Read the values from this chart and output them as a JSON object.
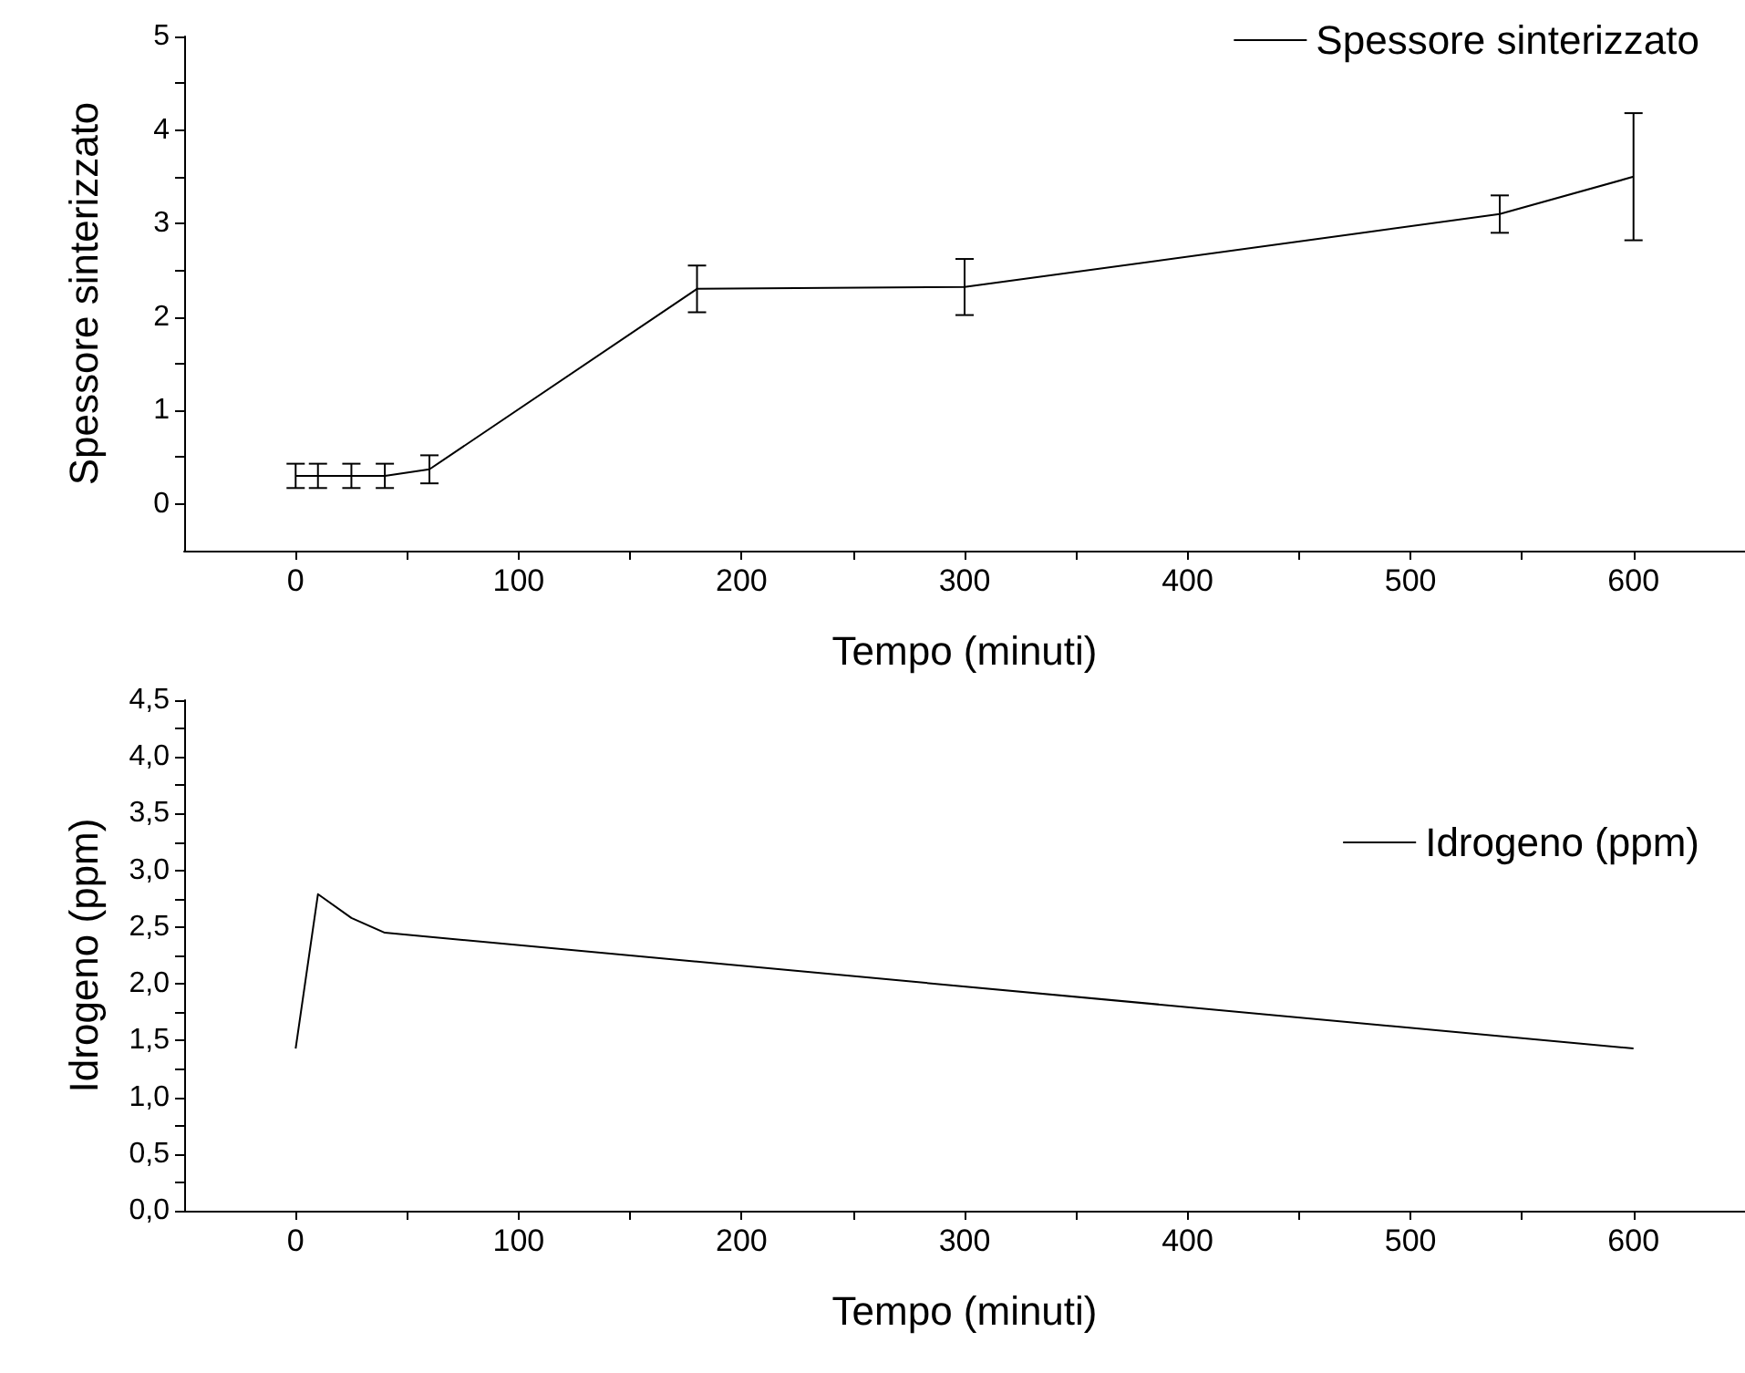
{
  "chart_data": [
    {
      "type": "line",
      "xlabel": "Tempo (minuti)",
      "ylabel": "Spessore sinterizzato",
      "x": [
        0,
        10,
        25,
        40,
        60,
        180,
        300,
        540,
        600
      ],
      "series": [
        {
          "name": "Spessore sinterizzato",
          "color": "#000000",
          "values": [
            0.3,
            0.3,
            0.3,
            0.3,
            0.37,
            2.3,
            2.32,
            3.1,
            3.5
          ],
          "errors": [
            0.13,
            0.13,
            0.13,
            0.13,
            0.15,
            0.25,
            0.3,
            0.2,
            0.68
          ]
        }
      ],
      "xlim": [
        -50,
        650
      ],
      "xticks": [
        0,
        {
          "value": 50,
          "label": null
        },
        100,
        {
          "value": 150,
          "label": null
        },
        200,
        {
          "value": 250,
          "label": null
        },
        300,
        {
          "value": 350,
          "label": null
        },
        400,
        {
          "value": 450,
          "label": null
        },
        500,
        {
          "value": 550,
          "label": null
        },
        600
      ],
      "ylim": [
        -0.5,
        5
      ],
      "yticks": [
        0,
        {
          "value": 0.5,
          "label": null
        },
        1,
        {
          "value": 1.5,
          "label": null
        },
        2,
        {
          "value": 2.5,
          "label": null
        },
        3,
        {
          "value": 3.5,
          "label": null
        },
        4,
        {
          "value": 4.5,
          "label": null
        },
        5
      ],
      "legend": "top right",
      "grid": false,
      "marker": "none",
      "line_style": "solid"
    },
    {
      "type": "line",
      "xlabel": "Tempo (minuti)",
      "ylabel": "Idrogeno (ppm)",
      "x": [
        0,
        10,
        25,
        40,
        600
      ],
      "series": [
        {
          "name": "Idrogeno (ppm)",
          "color": "#000000",
          "values": [
            1.43,
            2.79,
            2.58,
            2.45,
            1.43
          ]
        }
      ],
      "xlim": [
        -50,
        650
      ],
      "xticks": [
        0,
        {
          "value": 50,
          "label": null
        },
        100,
        {
          "value": 150,
          "label": null
        },
        200,
        {
          "value": 250,
          "label": null
        },
        300,
        {
          "value": 350,
          "label": null
        },
        400,
        {
          "value": 450,
          "label": null
        },
        500,
        {
          "value": 550,
          "label": null
        },
        600
      ],
      "ylim": [
        0,
        4.5
      ],
      "yticks": [
        {
          "value": 0,
          "label": "0,0"
        },
        {
          "value": 0.25,
          "label": null
        },
        {
          "value": 0.5,
          "label": "0,5"
        },
        {
          "value": 0.75,
          "label": null
        },
        {
          "value": 1,
          "label": "1,0"
        },
        {
          "value": 1.25,
          "label": null
        },
        {
          "value": 1.5,
          "label": "1,5"
        },
        {
          "value": 1.75,
          "label": null
        },
        {
          "value": 2,
          "label": "2,0"
        },
        {
          "value": 2.25,
          "label": null
        },
        {
          "value": 2.5,
          "label": "2,5"
        },
        {
          "value": 2.75,
          "label": null
        },
        {
          "value": 3,
          "label": "3,0"
        },
        {
          "value": 3.25,
          "label": null
        },
        {
          "value": 3.5,
          "label": "3,5"
        },
        {
          "value": 3.75,
          "label": null
        },
        {
          "value": 4,
          "label": "4,0"
        },
        {
          "value": 4.25,
          "label": null
        },
        {
          "value": 4.5,
          "label": "4,5"
        }
      ],
      "legend": "top right",
      "grid": false,
      "marker": "none",
      "line_style": "solid"
    }
  ]
}
